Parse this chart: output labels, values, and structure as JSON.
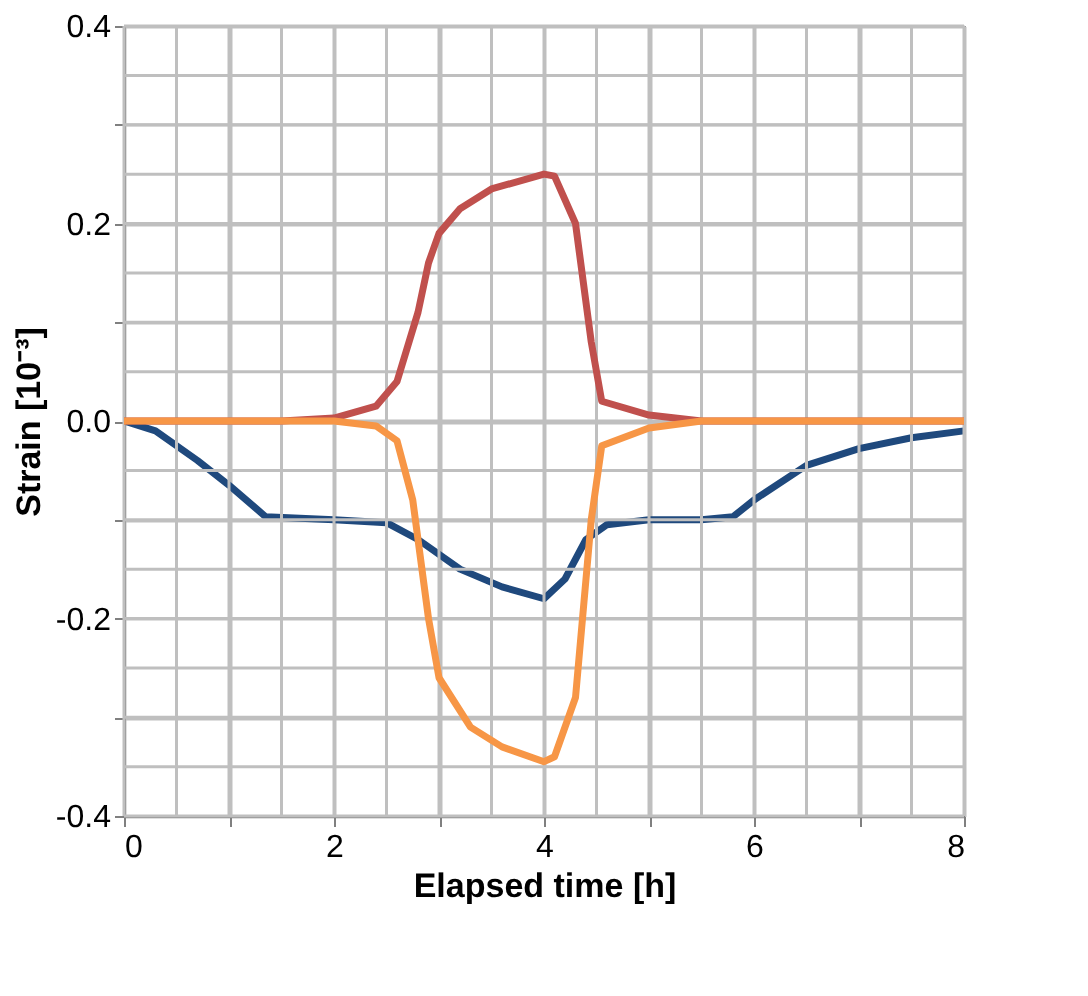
{
  "chart_data": {
    "type": "line",
    "xlabel": "Elapsed time [h]",
    "ylabel": "Strain [10⁻³]",
    "xlim": [
      0,
      8
    ],
    "ylim": [
      -0.4,
      0.4
    ],
    "xticks": [
      0,
      {
        "value": 0.5,
        "label": null
      },
      {
        "value": 1,
        "label": null
      },
      {
        "value": 1.5,
        "label": null
      },
      2,
      {
        "value": 2.5,
        "label": null
      },
      {
        "value": 3,
        "label": null
      },
      {
        "value": 3.5,
        "label": null
      },
      4,
      {
        "value": 4.5,
        "label": null
      },
      {
        "value": 5,
        "label": null
      },
      {
        "value": 5.5,
        "label": null
      },
      6,
      {
        "value": 6.5,
        "label": null
      },
      {
        "value": 7,
        "label": null
      },
      {
        "value": 7.5,
        "label": null
      },
      8
    ],
    "yticks": [
      -0.4,
      {
        "value": -0.35,
        "label": null
      },
      {
        "value": -0.3,
        "label": null
      },
      {
        "value": -0.25,
        "label": null
      },
      -0.2,
      {
        "value": -0.15,
        "label": null
      },
      {
        "value": -0.1,
        "label": null
      },
      {
        "value": -0.05,
        "label": null
      },
      {
        "value": 0,
        "label": "0.0"
      },
      {
        "value": 0.05,
        "label": null
      },
      {
        "value": 0.1,
        "label": null
      },
      {
        "value": 0.15,
        "label": null
      },
      0.2,
      {
        "value": 0.25,
        "label": null
      },
      {
        "value": 0.3,
        "label": null
      },
      {
        "value": 0.35,
        "label": null
      },
      0.4
    ],
    "grid": true,
    "legend": false,
    "line_style": "solid",
    "marker": "none",
    "series": [
      {
        "color": "#1f497d",
        "x": [
          0,
          0.3,
          0.7,
          1.0,
          1.35,
          2,
          2.5,
          2.8,
          3.2,
          3.6,
          4.0,
          4.2,
          4.4,
          4.6,
          5,
          5.5,
          5.8,
          6.0,
          6.5,
          7,
          7.5,
          8
        ],
        "values": [
          0,
          -0.01,
          -0.04,
          -0.065,
          -0.097,
          -0.1,
          -0.103,
          -0.12,
          -0.15,
          -0.168,
          -0.18,
          -0.16,
          -0.12,
          -0.105,
          -0.1,
          -0.1,
          -0.097,
          -0.08,
          -0.045,
          -0.028,
          -0.017,
          -0.01
        ]
      },
      {
        "color": "#c0504d",
        "x": [
          0,
          1.5,
          2,
          2.4,
          2.6,
          2.8,
          2.9,
          3.0,
          3.2,
          3.5,
          4.0,
          4.1,
          4.3,
          4.45,
          4.55,
          5,
          5.5,
          8
        ],
        "values": [
          0,
          0,
          0.003,
          0.015,
          0.04,
          0.11,
          0.16,
          0.19,
          0.215,
          0.235,
          0.25,
          0.248,
          0.2,
          0.08,
          0.02,
          0.006,
          0,
          0
        ]
      },
      {
        "color": "#f79646",
        "x": [
          0,
          2,
          2.4,
          2.6,
          2.75,
          2.9,
          3.0,
          3.3,
          3.6,
          4.0,
          4.1,
          4.3,
          4.45,
          4.55,
          5,
          5.5,
          8
        ],
        "values": [
          0,
          0,
          -0.005,
          -0.02,
          -0.08,
          -0.2,
          -0.26,
          -0.31,
          -0.33,
          -0.345,
          -0.34,
          -0.28,
          -0.1,
          -0.025,
          -0.007,
          0,
          0
        ]
      }
    ]
  }
}
